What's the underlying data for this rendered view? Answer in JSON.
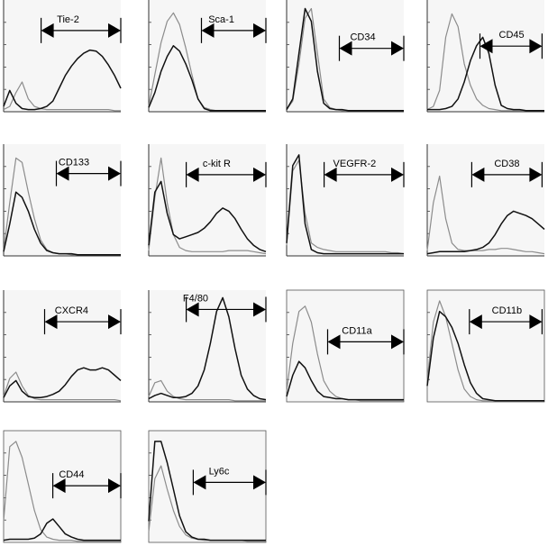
{
  "chart_data": [
    {
      "type": "line",
      "label": "Tie-2",
      "series": [
        {
          "values": [
            0.02,
            0.05,
            0.18,
            0.28,
            0.12,
            0.05,
            0.03,
            0.02,
            0.02,
            0.02,
            0.02,
            0.02,
            0.02,
            0.02,
            0.02,
            0.02,
            0.02,
            0.02,
            0.01,
            0.01
          ]
        },
        {
          "values": [
            0.05,
            0.2,
            0.08,
            0.03,
            0.02,
            0.02,
            0.03,
            0.05,
            0.1,
            0.22,
            0.34,
            0.43,
            0.5,
            0.55,
            0.58,
            0.57,
            0.52,
            0.44,
            0.34,
            0.22
          ]
        }
      ]
    },
    {
      "type": "line",
      "label": "Sca-1",
      "series": [
        {
          "values": [
            0.05,
            0.35,
            0.65,
            0.85,
            0.93,
            0.82,
            0.6,
            0.35,
            0.12,
            0.04,
            0.02,
            0.01,
            0.01,
            0.01,
            0.01,
            0.01,
            0.01,
            0.01,
            0.01,
            0.01
          ]
        },
        {
          "values": [
            0.04,
            0.18,
            0.38,
            0.52,
            0.62,
            0.57,
            0.45,
            0.3,
            0.12,
            0.03,
            0.01,
            0.01,
            0.01,
            0.01,
            0.01,
            0.01,
            0.01,
            0.01,
            0.01,
            0.01
          ]
        }
      ]
    },
    {
      "type": "line",
      "label": "CD34",
      "series": [
        {
          "values": [
            0.02,
            0.1,
            0.45,
            0.88,
            0.97,
            0.55,
            0.12,
            0.04,
            0.02,
            0.01,
            0.01,
            0.01,
            0.01,
            0.01,
            0.01,
            0.01,
            0.01,
            0.01,
            0.01,
            0.01
          ]
        },
        {
          "values": [
            0.02,
            0.12,
            0.55,
            0.97,
            0.85,
            0.38,
            0.08,
            0.03,
            0.02,
            0.02,
            0.01,
            0.01,
            0.01,
            0.01,
            0.01,
            0.01,
            0.01,
            0.01,
            0.01,
            0.01
          ]
        }
      ]
    },
    {
      "type": "line",
      "label": "CD45",
      "series": [
        {
          "values": [
            0.02,
            0.05,
            0.2,
            0.7,
            0.92,
            0.8,
            0.45,
            0.25,
            0.12,
            0.06,
            0.03,
            0.02,
            0.01,
            0.01,
            0.01,
            0.01,
            0.01,
            0.01,
            0.01,
            0.01
          ]
        },
        {
          "values": [
            0.02,
            0.02,
            0.02,
            0.03,
            0.05,
            0.12,
            0.28,
            0.48,
            0.62,
            0.7,
            0.55,
            0.25,
            0.06,
            0.03,
            0.02,
            0.02,
            0.01,
            0.01,
            0.01,
            0.01
          ]
        }
      ]
    },
    {
      "type": "line",
      "label": "CD133",
      "series": [
        {
          "values": [
            0.05,
            0.5,
            0.92,
            0.88,
            0.6,
            0.35,
            0.15,
            0.06,
            0.03,
            0.02,
            0.02,
            0.01,
            0.01,
            0.01,
            0.01,
            0.01,
            0.01,
            0.01,
            0.01,
            0.01
          ]
        },
        {
          "values": [
            0.04,
            0.3,
            0.6,
            0.55,
            0.42,
            0.25,
            0.12,
            0.05,
            0.03,
            0.02,
            0.02,
            0.02,
            0.01,
            0.01,
            0.01,
            0.01,
            0.01,
            0.01,
            0.01,
            0.01
          ]
        }
      ]
    },
    {
      "type": "line",
      "label": "c-kit R",
      "series": [
        {
          "values": [
            0.05,
            0.55,
            0.92,
            0.5,
            0.2,
            0.08,
            0.05,
            0.04,
            0.04,
            0.04,
            0.04,
            0.04,
            0.04,
            0.05,
            0.05,
            0.05,
            0.05,
            0.04,
            0.03,
            0.02
          ]
        },
        {
          "values": [
            0.1,
            0.6,
            0.7,
            0.4,
            0.2,
            0.16,
            0.18,
            0.2,
            0.22,
            0.26,
            0.32,
            0.4,
            0.45,
            0.42,
            0.35,
            0.25,
            0.16,
            0.1,
            0.06,
            0.04
          ]
        }
      ]
    },
    {
      "type": "line",
      "label": "VEGFR-2",
      "series": [
        {
          "values": [
            0.1,
            0.8,
            0.9,
            0.4,
            0.12,
            0.08,
            0.06,
            0.05,
            0.04,
            0.04,
            0.04,
            0.04,
            0.04,
            0.04,
            0.04,
            0.04,
            0.04,
            0.03,
            0.03,
            0.02
          ]
        },
        {
          "values": [
            0.12,
            0.85,
            0.95,
            0.3,
            0.06,
            0.03,
            0.02,
            0.02,
            0.02,
            0.02,
            0.02,
            0.02,
            0.02,
            0.02,
            0.02,
            0.02,
            0.02,
            0.02,
            0.02,
            0.02
          ]
        }
      ]
    },
    {
      "type": "line",
      "label": "CD38",
      "series": [
        {
          "values": [
            0.05,
            0.5,
            0.75,
            0.35,
            0.12,
            0.06,
            0.05,
            0.05,
            0.05,
            0.05,
            0.06,
            0.06,
            0.07,
            0.07,
            0.06,
            0.05,
            0.04,
            0.04,
            0.03,
            0.02
          ]
        },
        {
          "values": [
            0.02,
            0.03,
            0.04,
            0.04,
            0.04,
            0.04,
            0.04,
            0.05,
            0.06,
            0.08,
            0.12,
            0.2,
            0.3,
            0.38,
            0.42,
            0.4,
            0.38,
            0.35,
            0.3,
            0.25
          ]
        }
      ]
    },
    {
      "type": "line",
      "label": "CXCR4",
      "series": [
        {
          "values": [
            0.05,
            0.22,
            0.28,
            0.15,
            0.06,
            0.03,
            0.02,
            0.02,
            0.02,
            0.02,
            0.02,
            0.02,
            0.02,
            0.02,
            0.02,
            0.02,
            0.02,
            0.02,
            0.02,
            0.01
          ]
        },
        {
          "values": [
            0.04,
            0.15,
            0.2,
            0.1,
            0.05,
            0.04,
            0.04,
            0.05,
            0.07,
            0.1,
            0.16,
            0.24,
            0.3,
            0.32,
            0.3,
            0.3,
            0.32,
            0.3,
            0.25,
            0.2
          ]
        }
      ]
    },
    {
      "type": "line",
      "label": "F4/80",
      "series": [
        {
          "values": [
            0.05,
            0.18,
            0.2,
            0.1,
            0.05,
            0.03,
            0.02,
            0.02,
            0.02,
            0.02,
            0.02,
            0.02,
            0.02,
            0.02,
            0.01,
            0.01,
            0.01,
            0.01,
            0.01,
            0.01
          ]
        },
        {
          "values": [
            0.03,
            0.06,
            0.08,
            0.06,
            0.04,
            0.04,
            0.05,
            0.08,
            0.15,
            0.3,
            0.55,
            0.85,
            0.98,
            0.8,
            0.5,
            0.25,
            0.12,
            0.06,
            0.03,
            0.02
          ]
        }
      ]
    },
    {
      "type": "line",
      "label": "CD11a",
      "series": [
        {
          "values": [
            0.1,
            0.55,
            0.85,
            0.9,
            0.75,
            0.45,
            0.2,
            0.1,
            0.05,
            0.03,
            0.02,
            0.02,
            0.01,
            0.01,
            0.01,
            0.01,
            0.01,
            0.01,
            0.01,
            0.01
          ]
        },
        {
          "values": [
            0.05,
            0.25,
            0.38,
            0.32,
            0.2,
            0.1,
            0.05,
            0.04,
            0.03,
            0.03,
            0.02,
            0.02,
            0.02,
            0.02,
            0.02,
            0.02,
            0.02,
            0.02,
            0.02,
            0.02
          ]
        }
      ]
    },
    {
      "type": "line",
      "label": "CD11b",
      "series": [
        {
          "values": [
            0.2,
            0.75,
            0.95,
            0.8,
            0.55,
            0.3,
            0.12,
            0.05,
            0.02,
            0.01,
            0.01,
            0.01,
            0.01,
            0.01,
            0.01,
            0.01,
            0.01,
            0.01,
            0.01,
            0.01
          ]
        },
        {
          "values": [
            0.15,
            0.6,
            0.85,
            0.8,
            0.7,
            0.55,
            0.35,
            0.18,
            0.08,
            0.03,
            0.02,
            0.01,
            0.01,
            0.01,
            0.01,
            0.01,
            0.01,
            0.01,
            0.01,
            0.01
          ]
        }
      ]
    },
    {
      "type": "line",
      "label": "CD44",
      "series": [
        {
          "values": [
            0.2,
            0.9,
            0.95,
            0.8,
            0.55,
            0.3,
            0.12,
            0.05,
            0.03,
            0.02,
            0.02,
            0.02,
            0.01,
            0.01,
            0.01,
            0.01,
            0.01,
            0.01,
            0.01,
            0.01
          ]
        },
        {
          "values": [
            0.02,
            0.03,
            0.03,
            0.03,
            0.03,
            0.04,
            0.08,
            0.18,
            0.22,
            0.15,
            0.08,
            0.05,
            0.03,
            0.02,
            0.02,
            0.02,
            0.02,
            0.02,
            0.02,
            0.02
          ]
        }
      ]
    },
    {
      "type": "line",
      "label": "Ly6c",
      "series": [
        {
          "values": [
            0.1,
            0.6,
            0.72,
            0.5,
            0.3,
            0.15,
            0.07,
            0.04,
            0.03,
            0.02,
            0.02,
            0.02,
            0.02,
            0.02,
            0.02,
            0.02,
            0.01,
            0.01,
            0.01,
            0.01
          ]
        },
        {
          "values": [
            0.2,
            0.95,
            0.95,
            0.75,
            0.5,
            0.25,
            0.1,
            0.05,
            0.03,
            0.03,
            0.02,
            0.02,
            0.02,
            0.02,
            0.02,
            0.02,
            0.02,
            0.02,
            0.02,
            0.02
          ]
        }
      ]
    }
  ]
}
